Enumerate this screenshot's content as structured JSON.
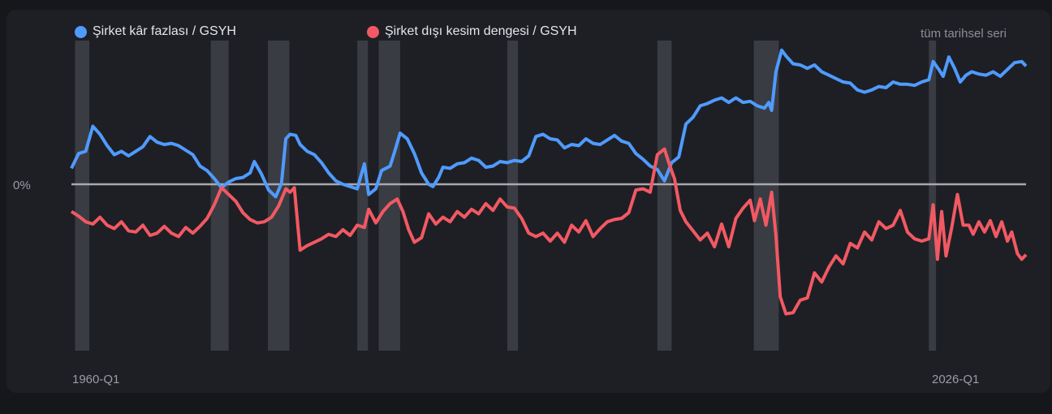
{
  "legend": {
    "series1": "Şirket kâr fazlası / GSYH",
    "series2": "Şirket dışı kesim dengesi / GSYH",
    "note": "tüm tarihsel seri"
  },
  "colors": {
    "series1": "#4f9bff",
    "series2": "#f25963",
    "zero": "#a8a9ad",
    "recession": "#3a3c43"
  },
  "chart_data": {
    "type": "line",
    "x_labels": [
      "1960-Q1",
      "2026-Q1"
    ],
    "y_label": "0%",
    "recession_bands": [
      [
        "1960-Q2",
        "1961-Q1"
      ],
      [
        "1969-Q4",
        "1970-Q4"
      ],
      [
        "1973-Q4",
        "1975-Q1"
      ],
      [
        "1980-Q1",
        "1980-Q3"
      ],
      [
        "1981-Q3",
        "1982-Q4"
      ],
      [
        "1990-Q3",
        "1991-Q1"
      ],
      [
        "2001-Q1",
        "2001-Q4"
      ],
      [
        "2007-Q4",
        "2009-Q2"
      ],
      [
        "2020-Q1",
        "2020-Q2"
      ]
    ],
    "series": [
      {
        "name": "Şirket kâr fazlası / GSYH",
        "points": [
          [
            1960.0,
            1.4
          ],
          [
            1960.5,
            2.7
          ],
          [
            1961.0,
            2.9
          ],
          [
            1961.5,
            5.1
          ],
          [
            1962.0,
            4.4
          ],
          [
            1962.5,
            3.4
          ],
          [
            1963.0,
            2.6
          ],
          [
            1963.5,
            2.9
          ],
          [
            1964.0,
            2.5
          ],
          [
            1964.5,
            2.9
          ],
          [
            1965.0,
            3.3
          ],
          [
            1965.5,
            4.2
          ],
          [
            1966.0,
            3.7
          ],
          [
            1966.5,
            3.5
          ],
          [
            1967.0,
            3.6
          ],
          [
            1967.5,
            3.4
          ],
          [
            1968.0,
            3.0
          ],
          [
            1968.5,
            2.6
          ],
          [
            1969.0,
            1.6
          ],
          [
            1969.5,
            1.2
          ],
          [
            1970.0,
            0.5
          ],
          [
            1970.5,
            -0.3
          ],
          [
            1971.0,
            0.2
          ],
          [
            1971.5,
            0.5
          ],
          [
            1972.0,
            0.6
          ],
          [
            1972.5,
            1.0
          ],
          [
            1972.8,
            2.0
          ],
          [
            1973.3,
            0.9
          ],
          [
            1973.8,
            -0.5
          ],
          [
            1974.3,
            -1.1
          ],
          [
            1974.7,
            0.1
          ],
          [
            1975.0,
            4.0
          ],
          [
            1975.3,
            4.4
          ],
          [
            1975.7,
            4.3
          ],
          [
            1976.0,
            3.5
          ],
          [
            1976.5,
            2.9
          ],
          [
            1977.0,
            2.6
          ],
          [
            1977.5,
            1.9
          ],
          [
            1978.0,
            1.0
          ],
          [
            1978.5,
            0.3
          ],
          [
            1979.0,
            0.0
          ],
          [
            1979.5,
            -0.2
          ],
          [
            1980.0,
            -0.4
          ],
          [
            1980.5,
            1.8
          ],
          [
            1980.8,
            -0.9
          ],
          [
            1981.3,
            -0.4
          ],
          [
            1981.7,
            1.2
          ],
          [
            1982.3,
            1.6
          ],
          [
            1982.6,
            2.8
          ],
          [
            1983.0,
            4.5
          ],
          [
            1983.5,
            4.0
          ],
          [
            1984.0,
            2.7
          ],
          [
            1984.5,
            1.0
          ],
          [
            1985.0,
            0.0
          ],
          [
            1985.3,
            -0.2
          ],
          [
            1985.7,
            0.6
          ],
          [
            1986.0,
            1.5
          ],
          [
            1986.5,
            1.4
          ],
          [
            1987.0,
            1.8
          ],
          [
            1987.5,
            1.9
          ],
          [
            1988.0,
            2.3
          ],
          [
            1988.5,
            2.1
          ],
          [
            1989.0,
            1.5
          ],
          [
            1989.5,
            1.6
          ],
          [
            1990.0,
            2.0
          ],
          [
            1990.5,
            1.9
          ],
          [
            1991.0,
            2.1
          ],
          [
            1991.5,
            2.0
          ],
          [
            1992.0,
            2.5
          ],
          [
            1992.5,
            4.2
          ],
          [
            1993.0,
            4.4
          ],
          [
            1993.5,
            4.0
          ],
          [
            1994.0,
            3.9
          ],
          [
            1994.5,
            3.2
          ],
          [
            1995.0,
            3.5
          ],
          [
            1995.5,
            3.4
          ],
          [
            1996.0,
            4.0
          ],
          [
            1996.5,
            3.6
          ],
          [
            1997.0,
            3.5
          ],
          [
            1997.5,
            3.9
          ],
          [
            1998.0,
            4.3
          ],
          [
            1998.5,
            3.8
          ],
          [
            1999.0,
            3.6
          ],
          [
            1999.5,
            2.7
          ],
          [
            2000.0,
            2.2
          ],
          [
            2000.5,
            1.6
          ],
          [
            2001.0,
            1.3
          ],
          [
            2001.5,
            0.3
          ],
          [
            2002.0,
            1.9
          ],
          [
            2002.5,
            2.4
          ],
          [
            2003.0,
            5.3
          ],
          [
            2003.5,
            5.9
          ],
          [
            2004.0,
            6.9
          ],
          [
            2004.5,
            7.1
          ],
          [
            2005.0,
            7.4
          ],
          [
            2005.5,
            7.6
          ],
          [
            2006.0,
            7.2
          ],
          [
            2006.5,
            7.6
          ],
          [
            2007.0,
            7.2
          ],
          [
            2007.5,
            7.3
          ],
          [
            2008.0,
            6.9
          ],
          [
            2008.5,
            6.7
          ],
          [
            2008.8,
            7.2
          ],
          [
            2009.0,
            6.5
          ],
          [
            2009.3,
            9.9
          ],
          [
            2009.7,
            11.8
          ],
          [
            2010.0,
            11.3
          ],
          [
            2010.5,
            10.6
          ],
          [
            2011.0,
            10.5
          ],
          [
            2011.5,
            10.2
          ],
          [
            2012.0,
            10.5
          ],
          [
            2012.5,
            9.9
          ],
          [
            2013.0,
            9.6
          ],
          [
            2013.5,
            9.3
          ],
          [
            2014.0,
            9.0
          ],
          [
            2014.5,
            8.9
          ],
          [
            2015.0,
            8.3
          ],
          [
            2015.5,
            8.1
          ],
          [
            2016.0,
            8.3
          ],
          [
            2016.5,
            8.6
          ],
          [
            2017.0,
            8.5
          ],
          [
            2017.5,
            9.0
          ],
          [
            2018.0,
            8.8
          ],
          [
            2018.5,
            8.8
          ],
          [
            2019.0,
            8.7
          ],
          [
            2019.5,
            9.0
          ],
          [
            2020.0,
            9.2
          ],
          [
            2020.3,
            10.8
          ],
          [
            2020.7,
            10.1
          ],
          [
            2021.0,
            9.5
          ],
          [
            2021.4,
            11.2
          ],
          [
            2021.8,
            10.2
          ],
          [
            2022.2,
            9.0
          ],
          [
            2022.6,
            9.6
          ],
          [
            2023.0,
            9.9
          ],
          [
            2023.5,
            9.7
          ],
          [
            2024.0,
            9.6
          ],
          [
            2024.5,
            9.9
          ],
          [
            2025.0,
            9.5
          ],
          [
            2025.5,
            10.1
          ],
          [
            2026.0,
            10.7
          ],
          [
            2026.5,
            10.8
          ],
          [
            2026.8,
            10.4
          ]
        ]
      },
      {
        "name": "Şirket dışı kesim dengesi / GSYH",
        "points": [
          [
            1960.0,
            -2.4
          ],
          [
            1960.5,
            -2.8
          ],
          [
            1961.0,
            -3.3
          ],
          [
            1961.5,
            -3.5
          ],
          [
            1962.0,
            -2.9
          ],
          [
            1962.5,
            -3.6
          ],
          [
            1963.0,
            -3.9
          ],
          [
            1963.5,
            -3.3
          ],
          [
            1964.0,
            -4.1
          ],
          [
            1964.5,
            -4.2
          ],
          [
            1965.0,
            -3.6
          ],
          [
            1965.5,
            -4.5
          ],
          [
            1966.0,
            -4.3
          ],
          [
            1966.5,
            -3.7
          ],
          [
            1967.0,
            -4.3
          ],
          [
            1967.5,
            -4.6
          ],
          [
            1968.0,
            -3.8
          ],
          [
            1968.5,
            -4.3
          ],
          [
            1969.0,
            -3.7
          ],
          [
            1969.5,
            -3.0
          ],
          [
            1970.0,
            -1.8
          ],
          [
            1970.5,
            -0.3
          ],
          [
            1971.0,
            -0.9
          ],
          [
            1971.5,
            -1.5
          ],
          [
            1972.0,
            -2.5
          ],
          [
            1972.5,
            -3.1
          ],
          [
            1973.0,
            -3.4
          ],
          [
            1973.5,
            -3.3
          ],
          [
            1974.0,
            -2.9
          ],
          [
            1974.5,
            -1.9
          ],
          [
            1975.0,
            -0.4
          ],
          [
            1975.3,
            -0.7
          ],
          [
            1975.6,
            -0.3
          ],
          [
            1976.0,
            -5.8
          ],
          [
            1976.5,
            -5.4
          ],
          [
            1977.0,
            -5.1
          ],
          [
            1977.5,
            -4.8
          ],
          [
            1978.0,
            -4.4
          ],
          [
            1978.5,
            -4.6
          ],
          [
            1979.0,
            -4.0
          ],
          [
            1979.5,
            -4.5
          ],
          [
            1980.0,
            -3.6
          ],
          [
            1980.5,
            -3.8
          ],
          [
            1980.8,
            -2.2
          ],
          [
            1981.3,
            -3.4
          ],
          [
            1981.8,
            -2.4
          ],
          [
            1982.3,
            -1.7
          ],
          [
            1982.8,
            -1.3
          ],
          [
            1983.2,
            -2.4
          ],
          [
            1983.6,
            -4.0
          ],
          [
            1984.0,
            -5.1
          ],
          [
            1984.5,
            -4.7
          ],
          [
            1985.0,
            -2.6
          ],
          [
            1985.5,
            -3.5
          ],
          [
            1986.0,
            -2.9
          ],
          [
            1986.5,
            -3.3
          ],
          [
            1987.0,
            -2.4
          ],
          [
            1987.5,
            -2.9
          ],
          [
            1988.0,
            -2.2
          ],
          [
            1988.5,
            -2.6
          ],
          [
            1989.0,
            -1.7
          ],
          [
            1989.5,
            -2.3
          ],
          [
            1990.0,
            -1.3
          ],
          [
            1990.5,
            -2.0
          ],
          [
            1991.0,
            -2.1
          ],
          [
            1991.5,
            -3.0
          ],
          [
            1992.0,
            -4.3
          ],
          [
            1992.5,
            -4.6
          ],
          [
            1993.0,
            -4.3
          ],
          [
            1993.5,
            -5.0
          ],
          [
            1994.0,
            -4.3
          ],
          [
            1994.5,
            -5.1
          ],
          [
            1995.0,
            -3.6
          ],
          [
            1995.5,
            -4.2
          ],
          [
            1996.0,
            -3.2
          ],
          [
            1996.5,
            -4.6
          ],
          [
            1997.0,
            -3.9
          ],
          [
            1997.5,
            -3.3
          ],
          [
            1998.0,
            -3.1
          ],
          [
            1998.5,
            -3.0
          ],
          [
            1999.0,
            -2.5
          ],
          [
            1999.5,
            -0.5
          ],
          [
            2000.0,
            -0.4
          ],
          [
            2000.5,
            -0.7
          ],
          [
            2001.0,
            2.6
          ],
          [
            2001.5,
            3.1
          ],
          [
            2001.8,
            1.9
          ],
          [
            2002.2,
            0.5
          ],
          [
            2002.6,
            -2.3
          ],
          [
            2003.0,
            -3.3
          ],
          [
            2003.5,
            -4.1
          ],
          [
            2004.0,
            -4.9
          ],
          [
            2004.5,
            -4.3
          ],
          [
            2005.0,
            -5.5
          ],
          [
            2005.5,
            -3.5
          ],
          [
            2006.0,
            -5.5
          ],
          [
            2006.5,
            -3.0
          ],
          [
            2007.0,
            -2.1
          ],
          [
            2007.5,
            -1.4
          ],
          [
            2007.8,
            -3.2
          ],
          [
            2008.2,
            -1.3
          ],
          [
            2008.6,
            -3.6
          ],
          [
            2009.0,
            -0.7
          ],
          [
            2009.3,
            -4.5
          ],
          [
            2009.6,
            -9.9
          ],
          [
            2010.0,
            -11.4
          ],
          [
            2010.5,
            -11.3
          ],
          [
            2011.0,
            -10.2
          ],
          [
            2011.5,
            -10.0
          ],
          [
            2012.0,
            -7.8
          ],
          [
            2012.5,
            -8.6
          ],
          [
            2013.0,
            -7.3
          ],
          [
            2013.5,
            -6.3
          ],
          [
            2014.0,
            -7.0
          ],
          [
            2014.5,
            -5.2
          ],
          [
            2015.0,
            -5.6
          ],
          [
            2015.5,
            -4.2
          ],
          [
            2016.0,
            -4.9
          ],
          [
            2016.5,
            -3.3
          ],
          [
            2017.0,
            -3.9
          ],
          [
            2017.5,
            -3.6
          ],
          [
            2018.0,
            -2.3
          ],
          [
            2018.5,
            -4.2
          ],
          [
            2019.0,
            -4.8
          ],
          [
            2019.5,
            -5.0
          ],
          [
            2020.0,
            -4.8
          ],
          [
            2020.3,
            -1.8
          ],
          [
            2020.6,
            -6.6
          ],
          [
            2020.9,
            -2.4
          ],
          [
            2021.2,
            -6.3
          ],
          [
            2021.6,
            -3.8
          ],
          [
            2022.0,
            -0.9
          ],
          [
            2022.4,
            -3.6
          ],
          [
            2022.8,
            -3.6
          ],
          [
            2023.1,
            -4.4
          ],
          [
            2023.5,
            -3.3
          ],
          [
            2023.9,
            -4.2
          ],
          [
            2024.3,
            -3.2
          ],
          [
            2024.7,
            -4.6
          ],
          [
            2025.1,
            -3.3
          ],
          [
            2025.5,
            -5.0
          ],
          [
            2025.8,
            -4.2
          ],
          [
            2026.2,
            -6.1
          ],
          [
            2026.5,
            -6.6
          ],
          [
            2026.8,
            -6.2
          ]
        ]
      }
    ]
  }
}
